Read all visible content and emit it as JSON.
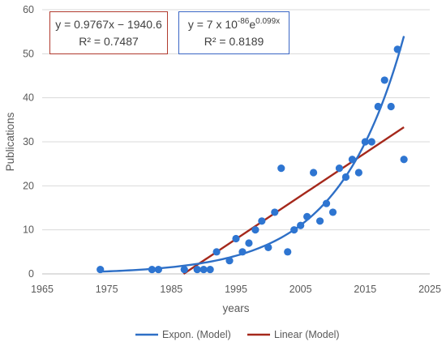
{
  "chart_data": {
    "type": "scatter",
    "xlabel": "years",
    "ylabel": "Publications",
    "xlim": [
      1965,
      2025
    ],
    "ylim": [
      0,
      60
    ],
    "x_ticks": [
      "1965",
      "1975",
      "1985",
      "1995",
      "2005",
      "2015",
      "2025"
    ],
    "y_ticks": [
      "0",
      "10",
      "20",
      "30",
      "40",
      "50",
      "60"
    ],
    "grid": "horizontal",
    "legend_position": "bottom",
    "points": {
      "color": "#2E75D1",
      "x": [
        1974,
        1982,
        1983,
        1987,
        1989,
        1990,
        1991,
        1992,
        1994,
        1995,
        1996,
        1997,
        1998,
        1999,
        2000,
        2001,
        2002,
        2003,
        2004,
        2005,
        2006,
        2007,
        2008,
        2009,
        2010,
        2011,
        2012,
        2013,
        2014,
        2015,
        2016,
        2017,
        2018,
        2019,
        2020,
        2021
      ],
      "y": [
        1,
        1,
        1,
        1,
        1,
        1,
        1,
        5,
        3,
        8,
        5,
        7,
        10,
        12,
        6,
        14,
        24,
        5,
        10,
        11,
        13,
        23,
        12,
        16,
        14,
        24,
        22,
        26,
        23,
        30,
        30,
        38,
        44,
        38,
        51,
        26
      ]
    },
    "series": [
      {
        "name": "Expon. (Model)",
        "color": "#2E6FC6",
        "equation": {
          "prefix": "y = 7 x 10",
          "exponent_power": "-86",
          "base": "e",
          "exponent": "0.099x"
        },
        "r_squared": "R² = 0.8189",
        "box_color": "#3A66C4"
      },
      {
        "name": "Linear (Model)",
        "color": "#A5281B",
        "equation": "y = 0.9767x − 1940.6",
        "r_squared": "R² = 0.7487",
        "box_color": "#B03A2E"
      }
    ]
  }
}
